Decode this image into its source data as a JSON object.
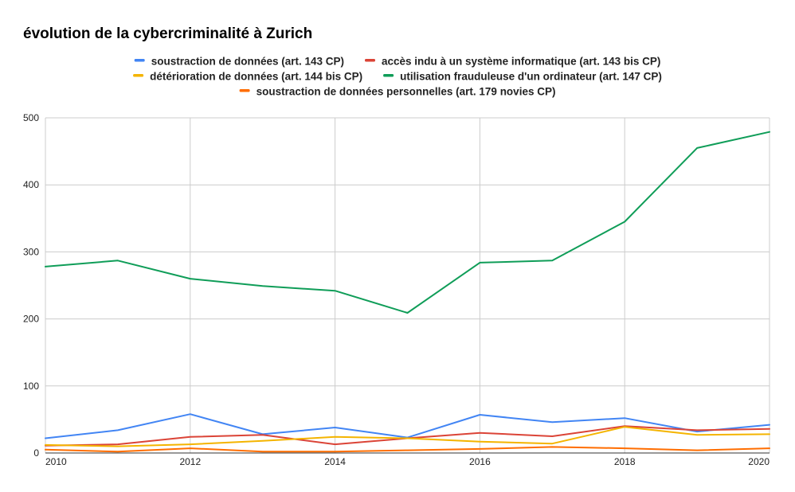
{
  "chart_data": {
    "type": "line",
    "title": "évolution de la cybercriminalité à Zurich",
    "xlabel": "",
    "ylabel": "",
    "x": [
      2010,
      2011,
      2012,
      2013,
      2014,
      2015,
      2016,
      2017,
      2018,
      2019,
      2020
    ],
    "x_ticks": [
      "2010",
      "2012",
      "2014",
      "2016",
      "2018",
      "2020"
    ],
    "y_ticks": [
      "0",
      "100",
      "200",
      "300",
      "400",
      "500"
    ],
    "xlim": [
      2010,
      2020
    ],
    "ylim": [
      0,
      500
    ],
    "grid": true,
    "legend_position": "top",
    "series": [
      {
        "name": "soustraction de données (art. 143 CP)",
        "color": "#4285f4",
        "values": [
          22,
          34,
          58,
          28,
          38,
          23,
          57,
          46,
          52,
          32,
          42
        ]
      },
      {
        "name": "accès indu à un système informatique (art. 143 bis CP)",
        "color": "#db4437",
        "values": [
          11,
          13,
          24,
          27,
          13,
          22,
          30,
          25,
          40,
          34,
          36
        ]
      },
      {
        "name": "détérioration de données (art. 144 bis CP)",
        "color": "#f4b400",
        "values": [
          12,
          10,
          13,
          18,
          24,
          22,
          17,
          14,
          39,
          27,
          28
        ]
      },
      {
        "name": "utilisation frauduleuse d'un ordinateur (art. 147 CP)",
        "color": "#0f9d58",
        "values": [
          278,
          287,
          260,
          249,
          242,
          209,
          284,
          287,
          345,
          455,
          479
        ]
      },
      {
        "name": "soustraction de données personnelles (art. 179 novies CP)",
        "color": "#ff6d00",
        "values": [
          5,
          2,
          7,
          2,
          2,
          4,
          6,
          9,
          7,
          4,
          7
        ]
      }
    ]
  }
}
